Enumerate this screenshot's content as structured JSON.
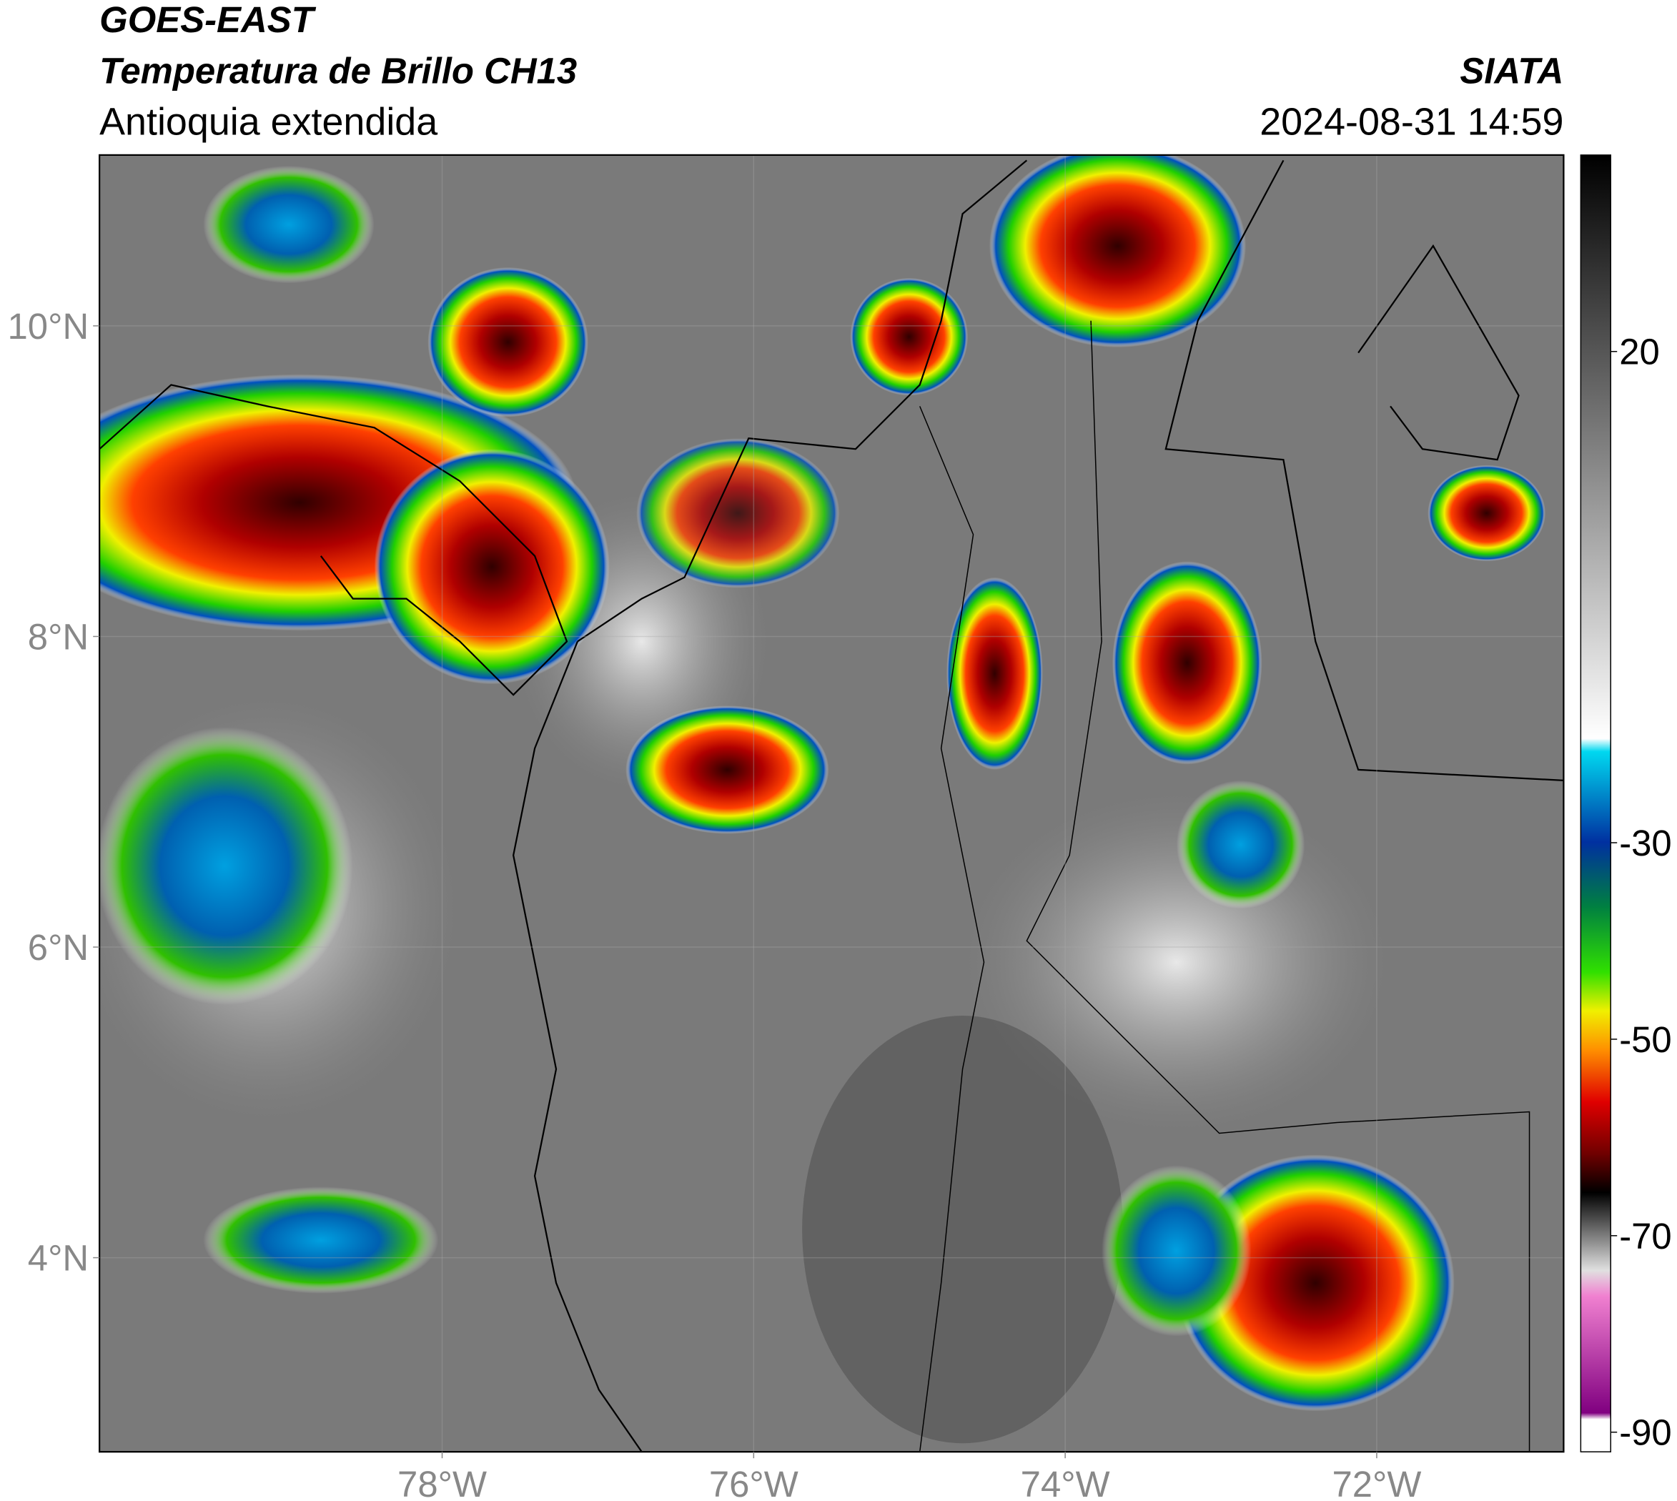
{
  "header": {
    "title": "GOES-EAST",
    "subtitle": "Temperatura de Brillo CH13",
    "region": "Antioquia extendida",
    "source": "SIATA",
    "datetime": "2024-08-31 14:59"
  },
  "map": {
    "xlim": [
      -80.2,
      -70.8
    ],
    "ylim": [
      2.75,
      11.1
    ],
    "xticks": [
      {
        "value": -78,
        "label": "78°W"
      },
      {
        "value": -76,
        "label": "76°W"
      },
      {
        "value": -74,
        "label": "74°W"
      },
      {
        "value": -72,
        "label": "72°W"
      }
    ],
    "yticks": [
      {
        "value": 4,
        "label": "4°N"
      },
      {
        "value": 6,
        "label": "6°N"
      },
      {
        "value": 8,
        "label": "8°N"
      },
      {
        "value": 10,
        "label": "10°N"
      }
    ],
    "grid": true
  },
  "colorbar": {
    "clim": [
      -92,
      40
    ],
    "ticks": [
      20,
      -30,
      -50,
      -70,
      -90
    ]
  }
}
